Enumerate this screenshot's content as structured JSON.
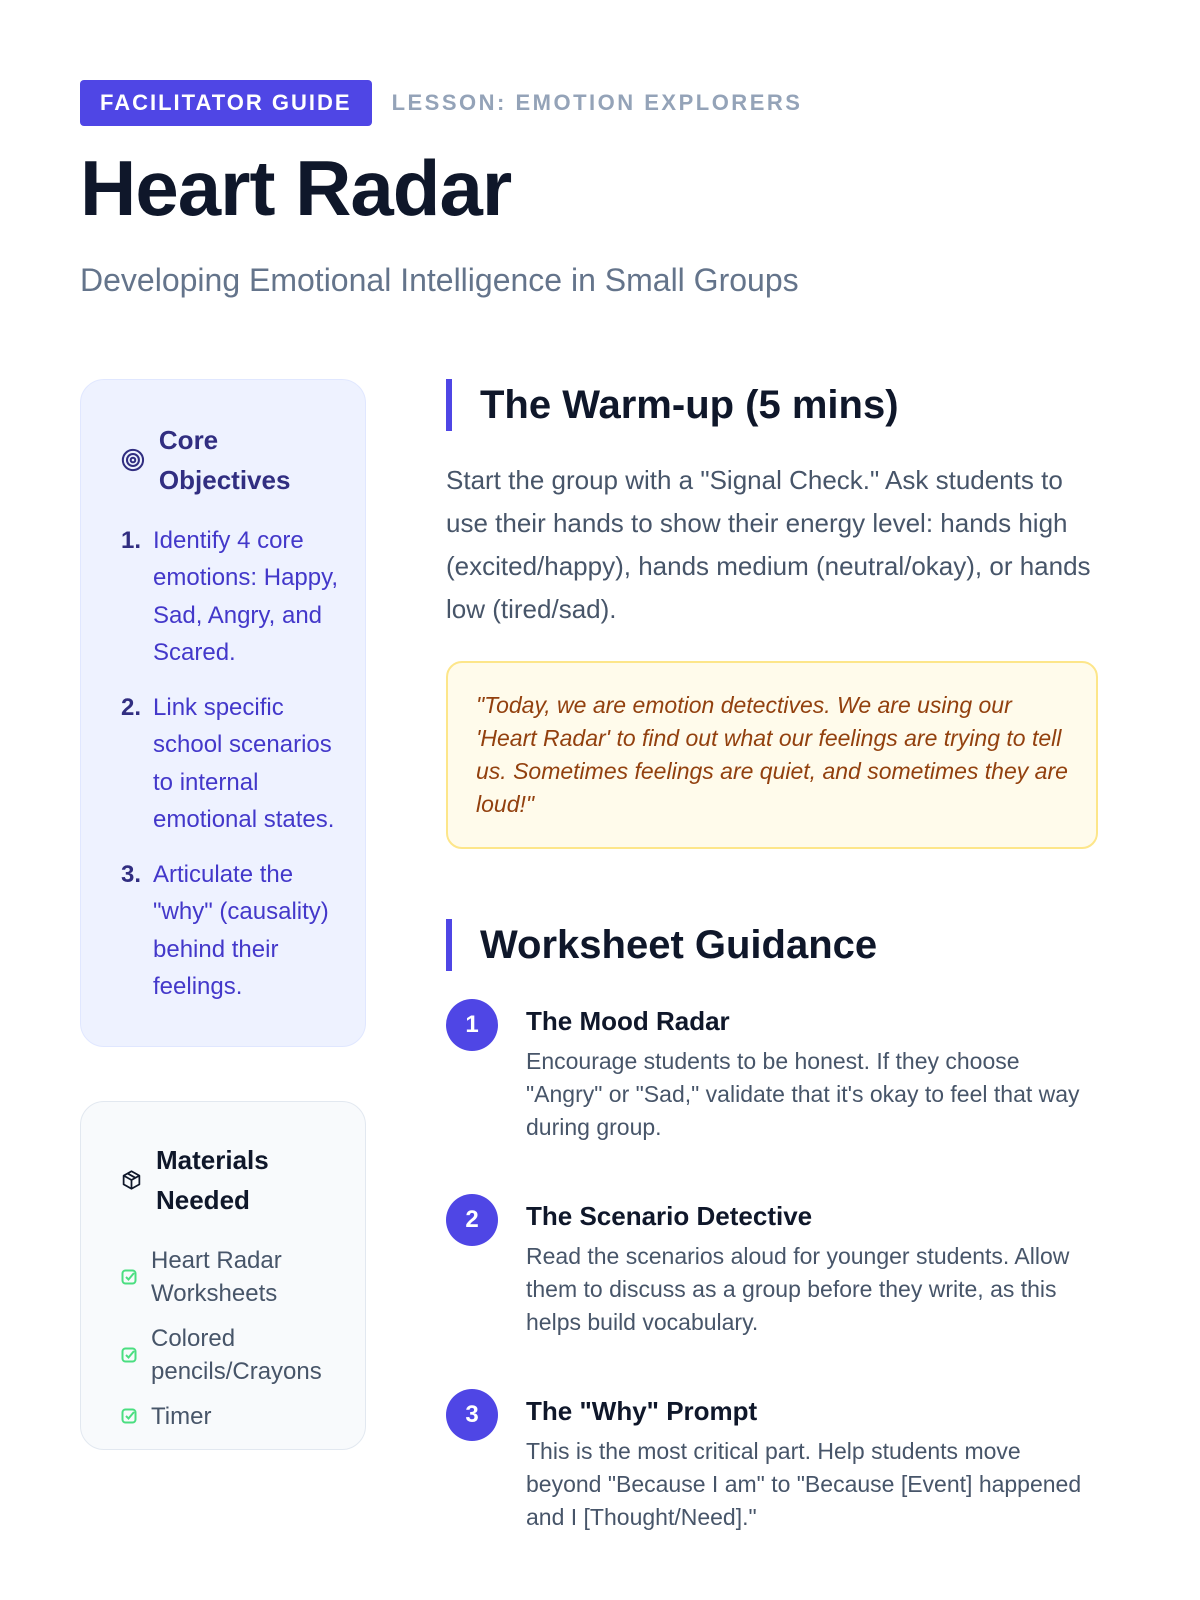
{
  "header": {
    "badge": "FACILITATOR GUIDE",
    "lesson": "LESSON: EMOTION EXPLORERS",
    "title": "Heart Radar",
    "subtitle": "Developing Emotional Intelligence in Small Groups"
  },
  "objectives": {
    "title": "Core Objectives",
    "icon": "target-icon",
    "items": [
      {
        "n": "1.",
        "text": "Identify 4 core emotions: Happy, Sad, Angry, and Scared."
      },
      {
        "n": "2.",
        "text": "Link specific school scenarios to internal emotional states."
      },
      {
        "n": "3.",
        "text": "Articulate the \"why\" (causality) behind their feelings."
      }
    ]
  },
  "materials": {
    "title": "Materials Needed",
    "icon": "package-icon",
    "items": [
      "Heart Radar Worksheets",
      "Colored pencils/Crayons",
      "Timer"
    ]
  },
  "warmup": {
    "title": "The Warm-up (5 mins)",
    "text": "Start the group with a \"Signal Check.\" Ask students to use their hands to show their energy level: hands high (excited/happy), hands medium (neutral/okay), or hands low (tired/sad).",
    "quote": "\"Today, we are emotion detectives. We are using our 'Heart Radar' to find out what our feelings are trying to tell us. Sometimes feelings are quiet, and sometimes they are loud!\""
  },
  "guidance": {
    "title": "Worksheet Guidance",
    "steps": [
      {
        "n": "1",
        "title": "The Mood Radar",
        "text": "Encourage students to be honest. If they choose \"Angry\" or \"Sad,\" validate that it's okay to feel that way during group."
      },
      {
        "n": "2",
        "title": "The Scenario Detective",
        "text": "Read the scenarios aloud for younger students. Allow them to discuss as a group before they write, as this helps build vocabulary."
      },
      {
        "n": "3",
        "title": "The \"Why\" Prompt",
        "text": "This is the most critical part. Help students move beyond \"Because I am\" to \"Because [Event] happened and I [Thought/Need].\""
      }
    ]
  },
  "colors": {
    "accent": "#4f46e5",
    "quote_bg": "#fffbeb",
    "check": "#4ade80"
  }
}
